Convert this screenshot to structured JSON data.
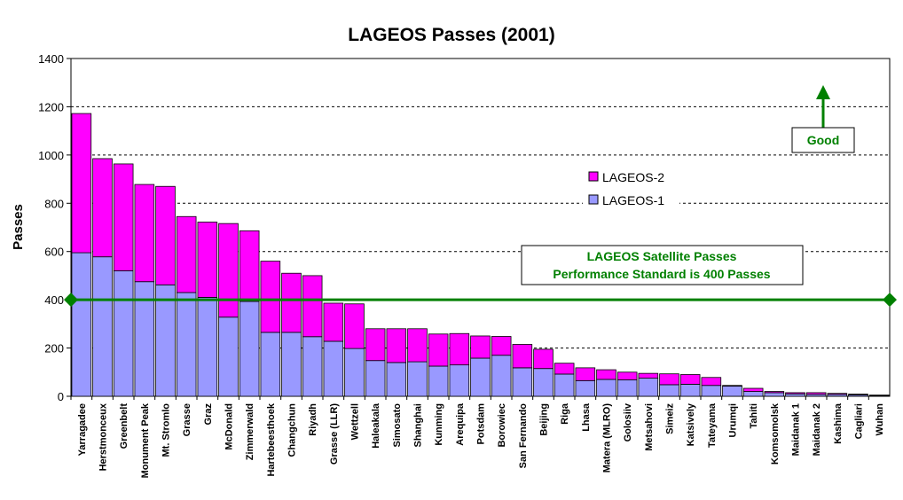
{
  "chart_data": {
    "type": "bar",
    "stacked": true,
    "title": "LAGEOS Passes (2001)",
    "xlabel": "",
    "ylabel": "Passes",
    "ylim": [
      0,
      1400
    ],
    "yticks": [
      0,
      200,
      400,
      600,
      800,
      1000,
      1200,
      1400
    ],
    "grid": true,
    "legend_position": "upper-center-right",
    "categories": [
      "Yarragadee",
      "Herstmonceux",
      "Greenbelt",
      "Monument Peak",
      "Mt. Stromlo",
      "Grasse",
      "Graz",
      "McDonald",
      "Zimmerwald",
      "Hartebeesthoek",
      "Changchun",
      "Riyadh",
      "Grasse (LLR)",
      "Wettzell",
      "Haleakala",
      "Simosato",
      "Shanghai",
      "Kunming",
      "Arequipa",
      "Potsdam",
      "Borowiec",
      "San Fernando",
      "Beijing",
      "Riga",
      "Lhasa",
      "Matera (MLRO)",
      "Golosiiv",
      "Metsahovi",
      "Simeiz",
      "Katsively",
      "Tateyama",
      "Urumqi",
      "Tahiti",
      "Komsomolsk",
      "Maidanak 1",
      "Maidanak 2",
      "Kashima",
      "Cagliari",
      "Wuhan"
    ],
    "series": [
      {
        "name": "LAGEOS-1",
        "color": "#9999ff",
        "values": [
          595,
          578,
          520,
          475,
          462,
          430,
          410,
          328,
          393,
          265,
          265,
          247,
          228,
          198,
          148,
          140,
          143,
          125,
          130,
          158,
          170,
          118,
          115,
          92,
          65,
          70,
          68,
          75,
          48,
          50,
          45,
          42,
          20,
          15,
          10,
          8,
          8,
          6,
          3
        ]
      },
      {
        "name": "LAGEOS-2",
        "color": "#ff00ff",
        "values": [
          577,
          407,
          443,
          403,
          408,
          315,
          312,
          388,
          293,
          295,
          245,
          253,
          158,
          185,
          132,
          140,
          137,
          133,
          130,
          92,
          78,
          97,
          80,
          45,
          53,
          40,
          32,
          20,
          45,
          40,
          33,
          3,
          13,
          5,
          5,
          7,
          4,
          3,
          2
        ]
      }
    ],
    "reference_line": {
      "value": 400,
      "color": "#008000"
    },
    "annotations": {
      "good_label": "Good",
      "standard_line1": "LAGEOS Satellite Passes",
      "standard_line2": "Performance Standard is 400 Passes"
    }
  }
}
